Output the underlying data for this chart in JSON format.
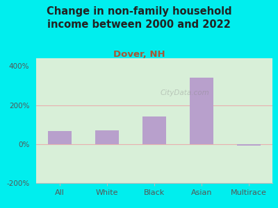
{
  "title": "Change in non-family household\nincome between 2000 and 2022",
  "subtitle": "Dover, NH",
  "categories": [
    "All",
    "White",
    "Black",
    "Asian",
    "Multirace"
  ],
  "values": [
    68,
    72,
    140,
    340,
    -8
  ],
  "bar_color": "#b8a0cc",
  "title_fontsize": 10.5,
  "subtitle_fontsize": 9.5,
  "subtitle_color": "#aa5533",
  "title_color": "#222222",
  "bg_outer": "#00EEEE",
  "bg_plot_left": "#d8efd8",
  "bg_plot_right": "#f0faf0",
  "ylim": [
    -200,
    440
  ],
  "yticks": [
    -200,
    0,
    200,
    400
  ],
  "ytick_labels": [
    "-200%",
    "0%",
    "200%",
    "400%"
  ],
  "grid_color_200": "#e8b0b0",
  "grid_color_0": "#e8b0b0",
  "bar_width": 0.5,
  "watermark": "CityData.com"
}
